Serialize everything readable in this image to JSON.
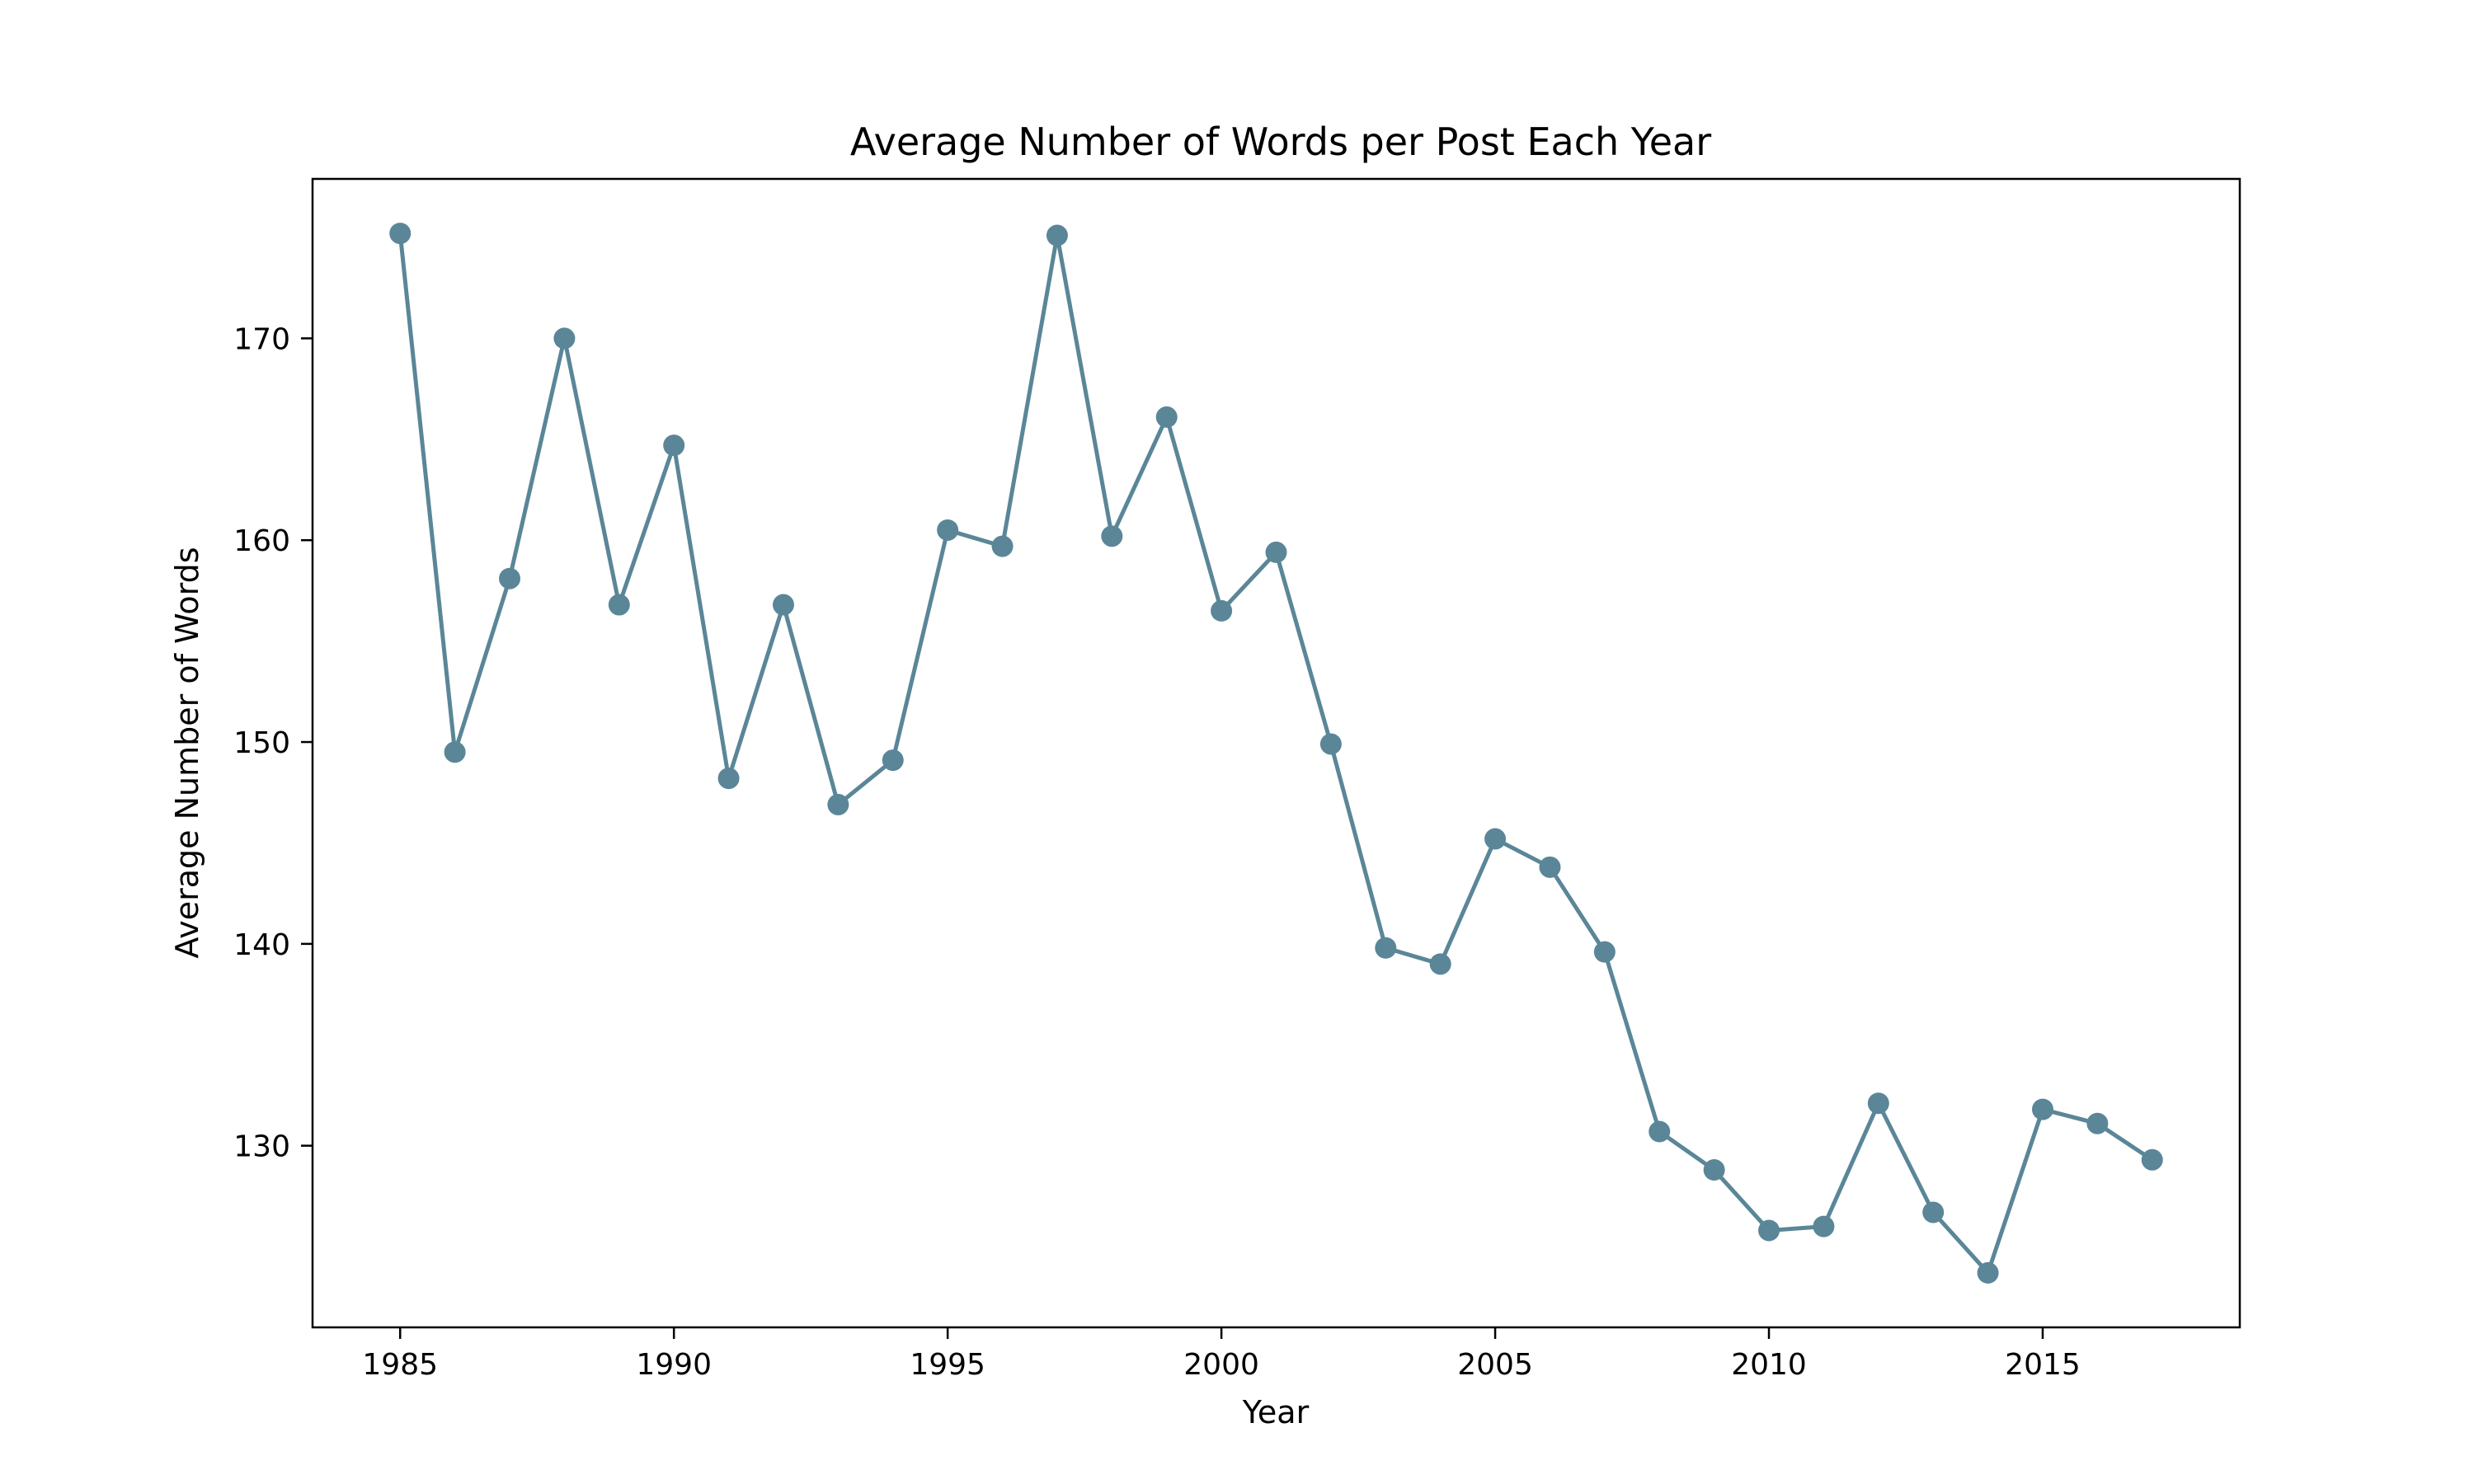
{
  "chart_data": {
    "type": "line",
    "title": "Average Number of Words per Post Each Year",
    "xlabel": "Year",
    "ylabel": "Average Number of Words",
    "x": [
      1985,
      1986,
      1987,
      1988,
      1989,
      1990,
      1991,
      1992,
      1993,
      1994,
      1995,
      1996,
      1997,
      1998,
      1999,
      2000,
      2001,
      2002,
      2003,
      2004,
      2005,
      2006,
      2007,
      2008,
      2009,
      2010,
      2011,
      2012,
      2013,
      2014,
      2015,
      2016,
      2017
    ],
    "series": [
      {
        "values": [
          175.2,
          149.5,
          158.1,
          170.0,
          156.8,
          164.7,
          148.2,
          156.8,
          146.9,
          149.1,
          160.5,
          159.7,
          175.1,
          160.2,
          166.1,
          156.5,
          159.4,
          149.9,
          139.8,
          139.0,
          145.2,
          143.8,
          139.6,
          130.7,
          128.8,
          125.8,
          126.0,
          132.1,
          126.7,
          123.7,
          131.8,
          131.1,
          129.3
        ],
        "color": "#5a8698"
      }
    ],
    "xlim": [
      1983.4,
      2018.6
    ],
    "ylim": [
      121.0,
      177.9
    ],
    "xticks": [
      1985,
      1990,
      1995,
      2000,
      2005,
      2010,
      2015
    ],
    "yticks": [
      130,
      140,
      150,
      160,
      170
    ],
    "grid": false,
    "marker": "circle"
  }
}
